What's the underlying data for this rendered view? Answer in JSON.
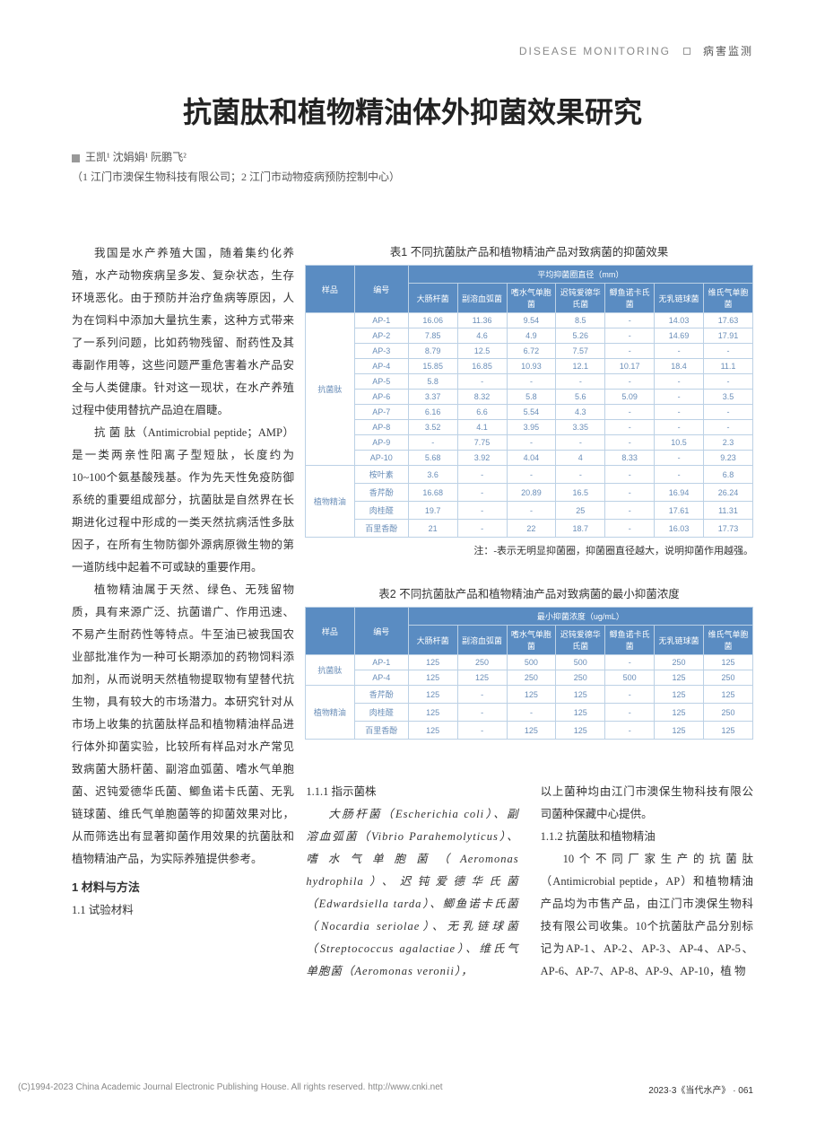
{
  "header": {
    "en": "DISEASE MONITORING",
    "cn": "病害监测"
  },
  "title": "抗菌肽和植物精油体外抑菌效果研究",
  "authors_line": "王凯¹ 沈娟娟¹ 阮鹏飞²",
  "affil_line": "（1 江门市澳保生物科技有限公司；2 江门市动物疫病预防控制中心）",
  "left_paragraphs": [
    "我国是水产养殖大国，随着集约化养殖，水产动物疾病呈多发、复杂状态，生存环境恶化。由于预防并治疗鱼病等原因，人为在饲料中添加大量抗生素，这种方式带来了一系列问题，比如药物残留、耐药性及其毒副作用等，这些问题严重危害着水产品安全与人类健康。针对这一现状，在水产养殖过程中使用替抗产品迫在眉睫。",
    "抗 菌 肽（Antimicrobial peptide；AMP）是一类两亲性阳离子型短肽，长度约为10~100个氨基酸残基。作为先天性免疫防御系统的重要组成部分，抗菌肽是自然界在长期进化过程中形成的一类天然抗病活性多肽因子，在所有生物防御外源病原微生物的第一道防线中起着不可或缺的重要作用。",
    "植物精油属于天然、绿色、无残留物质，具有来源广泛、抗菌谱广、作用迅速、不易产生耐药性等特点。牛至油已被我国农业部批准作为一种可长期添加的药物饲料添加剂，从而说明天然植物提取物有望替代抗生物，具有较大的市场潜力。本研究针对从市场上收集的抗菌肽样品和植物精油样品进行体外抑菌实验，比较所有样品对水产常见致病菌大肠杆菌、副溶血弧菌、嗜水气单胞菌、迟钝爱德华氏菌、鲫鱼诺卡氏菌、无乳链球菌、维氏气单胞菌等的抑菌效果对比，从而筛选出有显著抑菌作用效果的抗菌肽和植物精油产品，为实际养殖提供参考。"
  ],
  "sec1": "1  材料与方法",
  "sec11": "1.1  试验材料",
  "table1": {
    "caption": "表1  不同抗菌肽产品和植物精油产品对致病菌的抑菌效果",
    "head_group": "平均抑菌圈直径（mm）",
    "col_sample": "样品",
    "col_code": "编号",
    "cols": [
      "大肠杆菌",
      "副溶血弧菌",
      "嗜水气单胞菌",
      "迟钝爱德华氏菌",
      "鲫鱼诺卡氏菌",
      "无乳链球菌",
      "维氏气单胞菌"
    ],
    "group1": "抗菌肽",
    "group2": "植物精油",
    "rows_g1": [
      [
        "AP-1",
        "16.06",
        "11.36",
        "9.54",
        "8.5",
        "-",
        "14.03",
        "17.63"
      ],
      [
        "AP-2",
        "7.85",
        "4.6",
        "4.9",
        "5.26",
        "-",
        "14.69",
        "17.91"
      ],
      [
        "AP-3",
        "8.79",
        "12.5",
        "6.72",
        "7.57",
        "-",
        "-",
        "-"
      ],
      [
        "AP-4",
        "15.85",
        "16.85",
        "10.93",
        "12.1",
        "10.17",
        "18.4",
        "11.1"
      ],
      [
        "AP-5",
        "5.8",
        "-",
        "-",
        "-",
        "-",
        "-",
        "-"
      ],
      [
        "AP-6",
        "3.37",
        "8.32",
        "5.8",
        "5.6",
        "5.09",
        "-",
        "3.5"
      ],
      [
        "AP-7",
        "6.16",
        "6.6",
        "5.54",
        "4.3",
        "-",
        "-",
        "-"
      ],
      [
        "AP-8",
        "3.52",
        "4.1",
        "3.95",
        "3.35",
        "-",
        "-",
        "-"
      ],
      [
        "AP-9",
        "-",
        "7.75",
        "-",
        "-",
        "-",
        "10.5",
        "2.3"
      ],
      [
        "AP-10",
        "5.68",
        "3.92",
        "4.04",
        "4",
        "8.33",
        "-",
        "9.23"
      ]
    ],
    "rows_g2": [
      [
        "桉叶素",
        "3.6",
        "-",
        "-",
        "-",
        "-",
        "-",
        "6.8"
      ],
      [
        "香芹酚",
        "16.68",
        "-",
        "20.89",
        "16.5",
        "-",
        "16.94",
        "26.24"
      ],
      [
        "肉桂醛",
        "19.7",
        "-",
        "-",
        "25",
        "-",
        "17.61",
        "11.31"
      ],
      [
        "百里香酚",
        "21",
        "-",
        "22",
        "18.7",
        "-",
        "16.03",
        "17.73"
      ]
    ],
    "note": "注：-表示无明显抑菌圈，抑菌圈直径越大，说明抑菌作用越强。"
  },
  "table2": {
    "caption": "表2  不同抗菌肽产品和植物精油产品对致病菌的最小抑菌浓度",
    "head_group": "最小抑菌浓度（ug/mL）",
    "col_sample": "样品",
    "col_code": "编号",
    "cols": [
      "大肠杆菌",
      "副溶血弧菌",
      "嗜水气单胞菌",
      "迟钝爱德华氏菌",
      "鲫鱼诺卡氏菌",
      "无乳链球菌",
      "维氏气单胞菌"
    ],
    "group1": "抗菌肽",
    "group2": "植物精油",
    "rows_g1": [
      [
        "AP-1",
        "125",
        "250",
        "500",
        "500",
        "-",
        "250",
        "125"
      ],
      [
        "AP-4",
        "125",
        "125",
        "250",
        "250",
        "500",
        "125",
        "250"
      ]
    ],
    "rows_g2": [
      [
        "香芹酚",
        "125",
        "-",
        "125",
        "125",
        "-",
        "125",
        "125"
      ],
      [
        "肉桂醛",
        "125",
        "-",
        "-",
        "125",
        "-",
        "125",
        "250"
      ],
      [
        "百里香酚",
        "125",
        "-",
        "125",
        "125",
        "-",
        "125",
        "125"
      ]
    ]
  },
  "lower": {
    "h111": "1.1.1  指示菌株",
    "mid_p1": "大肠杆菌（Escherichia coli）、副溶血弧菌（Vibrio Parahemolyticus）、嗜水气单胞菌（Aeromonas hydrophila）、迟钝爱德华氏菌（Edwardsiella tarda）、鲫鱼诺卡氏菌（Nocardia seriolae）、无乳链球菌（Streptococcus agalactiae）、维氏气单胞菌（Aeromonas veronii），",
    "right_p1": "以上菌种均由江门市澳保生物科技有限公司菌种保藏中心提供。",
    "h112": "1.1.2  抗菌肽和植物精油",
    "right_p2": "10个不同厂家生产的抗菌肽（Antimicrobial peptide，AP）和植物精油产品均为市售产品，由江门市澳保生物科技有限公司收集。10个抗菌肽产品分别标记为AP-1、AP-2、AP-3、AP-4、AP-5、AP-6、AP-7、AP-8、AP-9、AP-10，植 物"
  },
  "footer": {
    "left": "(C)1994-2023 China Academic Journal Electronic Publishing House. All rights reserved.   http://www.cnki.net",
    "right": "2023·3《当代水产》 · 061"
  },
  "colors": {
    "table_header_bg": "#5a8cc2",
    "table_header_fg": "#ffffff",
    "table_border": "#bcd1e5",
    "table_cell_fg": "#6a8eb8"
  }
}
